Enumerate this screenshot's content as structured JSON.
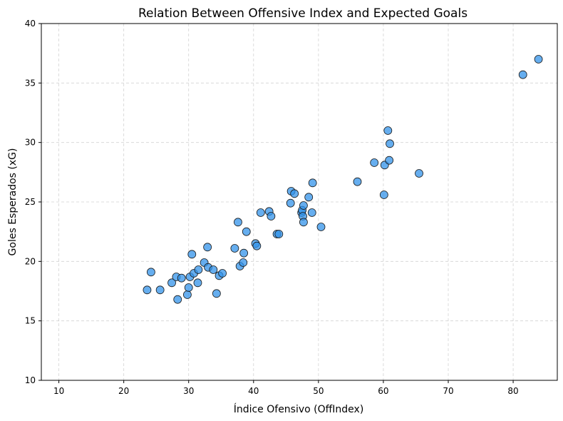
{
  "chart_data": {
    "type": "scatter",
    "title": "Relation Between Offensive Index and Expected Goals",
    "xlabel": "Índice Ofensivo (OffIndex)",
    "ylabel": "Goles Esperados (xG)",
    "xlim": [
      7.3,
      86.8
    ],
    "ylim": [
      10,
      40
    ],
    "xticks": [
      "10",
      "20",
      "30",
      "40",
      "50",
      "60",
      "70",
      "80"
    ],
    "yticks": [
      "10",
      "15",
      "20",
      "25",
      "30",
      "35",
      "40"
    ],
    "grid": true,
    "point_color": "#3393e9",
    "points": [
      {
        "x": 23.6,
        "y": 17.6
      },
      {
        "x": 24.2,
        "y": 19.1
      },
      {
        "x": 25.6,
        "y": 17.6
      },
      {
        "x": 27.4,
        "y": 18.2
      },
      {
        "x": 28.1,
        "y": 18.7
      },
      {
        "x": 28.9,
        "y": 18.6
      },
      {
        "x": 28.3,
        "y": 16.8
      },
      {
        "x": 29.8,
        "y": 17.2
      },
      {
        "x": 30.0,
        "y": 17.8
      },
      {
        "x": 30.2,
        "y": 18.7
      },
      {
        "x": 30.8,
        "y": 19.0
      },
      {
        "x": 31.4,
        "y": 18.2
      },
      {
        "x": 31.5,
        "y": 19.3
      },
      {
        "x": 30.5,
        "y": 20.6
      },
      {
        "x": 32.4,
        "y": 19.9
      },
      {
        "x": 33.0,
        "y": 19.5
      },
      {
        "x": 32.9,
        "y": 21.2
      },
      {
        "x": 33.8,
        "y": 19.3
      },
      {
        "x": 34.3,
        "y": 17.3
      },
      {
        "x": 34.7,
        "y": 18.8
      },
      {
        "x": 35.2,
        "y": 19.0
      },
      {
        "x": 37.1,
        "y": 21.1
      },
      {
        "x": 37.6,
        "y": 23.3
      },
      {
        "x": 37.9,
        "y": 19.6
      },
      {
        "x": 38.4,
        "y": 19.9
      },
      {
        "x": 38.5,
        "y": 20.7
      },
      {
        "x": 38.9,
        "y": 22.5
      },
      {
        "x": 40.3,
        "y": 21.5
      },
      {
        "x": 40.5,
        "y": 21.3
      },
      {
        "x": 41.1,
        "y": 24.1
      },
      {
        "x": 42.4,
        "y": 24.2
      },
      {
        "x": 42.7,
        "y": 23.8
      },
      {
        "x": 43.6,
        "y": 22.3
      },
      {
        "x": 43.9,
        "y": 22.3
      },
      {
        "x": 45.8,
        "y": 25.9
      },
      {
        "x": 45.7,
        "y": 24.9
      },
      {
        "x": 46.3,
        "y": 25.7
      },
      {
        "x": 47.4,
        "y": 24.1
      },
      {
        "x": 47.5,
        "y": 24.3
      },
      {
        "x": 47.7,
        "y": 24.7
      },
      {
        "x": 47.6,
        "y": 23.8
      },
      {
        "x": 47.7,
        "y": 23.3
      },
      {
        "x": 48.5,
        "y": 25.4
      },
      {
        "x": 49.0,
        "y": 24.1
      },
      {
        "x": 49.1,
        "y": 26.6
      },
      {
        "x": 50.4,
        "y": 22.9
      },
      {
        "x": 56.0,
        "y": 26.7
      },
      {
        "x": 58.6,
        "y": 28.3
      },
      {
        "x": 60.1,
        "y": 25.6
      },
      {
        "x": 60.2,
        "y": 28.1
      },
      {
        "x": 60.7,
        "y": 31.0
      },
      {
        "x": 61.0,
        "y": 29.9
      },
      {
        "x": 60.9,
        "y": 28.5
      },
      {
        "x": 65.5,
        "y": 27.4
      },
      {
        "x": 81.5,
        "y": 35.7
      },
      {
        "x": 83.9,
        "y": 37.0
      }
    ]
  }
}
